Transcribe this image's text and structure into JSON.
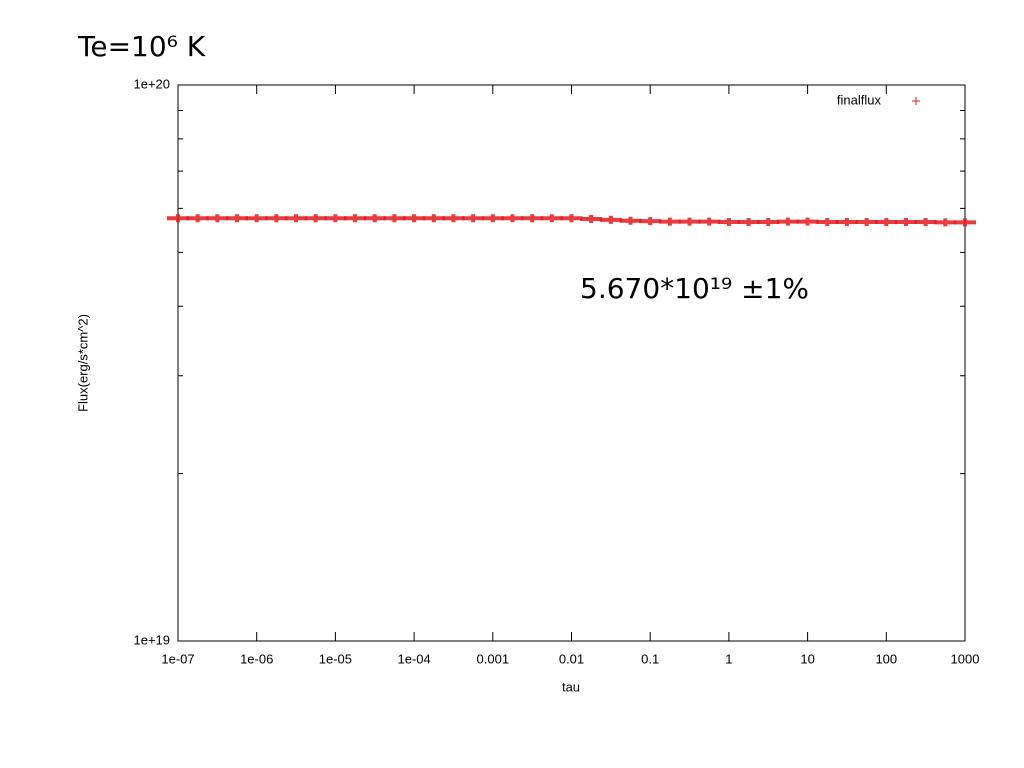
{
  "chart_data": {
    "type": "scatter",
    "title": "Te=10⁶ K",
    "annotation": "5.670*10¹⁹ ±1%",
    "x_label": "tau",
    "y_label": "Flux(erg/s*cm^2)",
    "x_log": true,
    "y_log": true,
    "grid": false,
    "legend": "top-right",
    "xlim": [
      1e-07,
      1000
    ],
    "ylim": [
      1e+19,
      1e+20
    ],
    "xticks": [
      {
        "value": 1e-07,
        "label": "1e-07"
      },
      {
        "value": 1e-06,
        "label": "1e-06"
      },
      {
        "value": 1e-05,
        "label": "1e-05"
      },
      {
        "value": 0.0001,
        "label": "1e-04"
      },
      0.001,
      0.01,
      0.1,
      1,
      10,
      100,
      1000
    ],
    "yticks": [
      {
        "value": 1e+19,
        "label": "1e+19"
      },
      {
        "value": 1e+20,
        "label": "1e+20"
      }
    ],
    "yminor_ticks": [
      2e+19,
      3e+19,
      4e+19,
      5e+19,
      6e+19,
      7e+19,
      8e+19,
      9e+19
    ],
    "series": [
      {
        "name": "finalflux",
        "color": "#e41a1c",
        "x": [
          1e-07,
          1.778e-07,
          3.162e-07,
          5.623e-07,
          1e-06,
          1.778e-06,
          3.162e-06,
          5.623e-06,
          1e-05,
          1.778e-05,
          3.162e-05,
          5.623e-05,
          0.0001,
          0.0001778,
          0.0003162,
          0.0005623,
          0.001,
          0.001778,
          0.003162,
          0.005623,
          0.01,
          0.01778,
          0.03162,
          0.05623,
          0.1,
          0.1778,
          0.3162,
          0.5623,
          1,
          1.778,
          3.162,
          5.623,
          10,
          17.78,
          31.62,
          56.23,
          100,
          177.8,
          316.2,
          562.3,
          1000
        ],
        "values": [
          5.76e+19,
          5.76e+19,
          5.76e+19,
          5.76e+19,
          5.76e+19,
          5.76e+19,
          5.76e+19,
          5.76e+19,
          5.76e+19,
          5.76e+19,
          5.76e+19,
          5.76e+19,
          5.76e+19,
          5.76e+19,
          5.76e+19,
          5.76e+19,
          5.76e+19,
          5.76e+19,
          5.76e+19,
          5.76e+19,
          5.76e+19,
          5.74e+19,
          5.72e+19,
          5.7e+19,
          5.69e+19,
          5.68e+19,
          5.68e+19,
          5.68e+19,
          5.67e+19,
          5.67e+19,
          5.67e+19,
          5.68e+19,
          5.68e+19,
          5.67e+19,
          5.67e+19,
          5.67e+19,
          5.67e+19,
          5.67e+19,
          5.67e+19,
          5.66e+19,
          5.66e+19
        ]
      }
    ]
  }
}
